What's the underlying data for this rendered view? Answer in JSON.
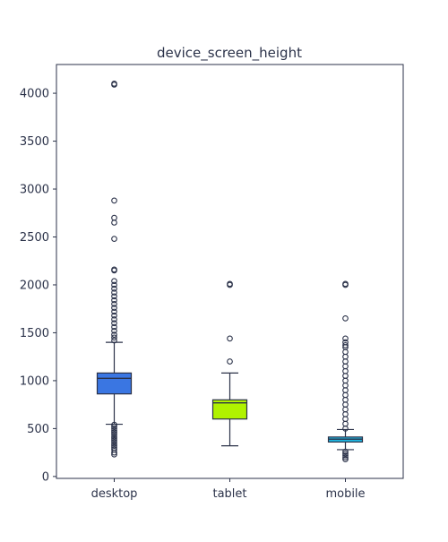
{
  "chart_data": {
    "type": "box",
    "title": "device_screen_height",
    "xlabel": "",
    "ylabel": "",
    "ylim": [
      -20,
      4300
    ],
    "yticks": [
      0,
      500,
      1000,
      1500,
      2000,
      2500,
      3000,
      3500,
      4000
    ],
    "grid": false,
    "categories": [
      "desktop",
      "tablet",
      "mobile"
    ],
    "boxes": [
      {
        "category": "desktop",
        "color": "#3a76e2",
        "whisker_low": 545,
        "q1": 862,
        "median": 1024,
        "q3": 1080,
        "whisker_high": 1400,
        "outliers": [
          230,
          250,
          280,
          300,
          320,
          340,
          360,
          380,
          400,
          420,
          440,
          460,
          480,
          500,
          520,
          540,
          1420,
          1450,
          1480,
          1520,
          1560,
          1600,
          1640,
          1680,
          1720,
          1760,
          1800,
          1840,
          1880,
          1920,
          1960,
          2000,
          2040,
          2150,
          2160,
          2480,
          2650,
          2700,
          2880,
          4090,
          4100
        ]
      },
      {
        "category": "tablet",
        "color": "#b0f200",
        "whisker_low": 320,
        "q1": 600,
        "median": 768,
        "q3": 800,
        "whisker_high": 1080,
        "outliers": [
          1200,
          1440,
          2000,
          2010
        ]
      },
      {
        "category": "mobile",
        "color": "#1fb6e0",
        "whisker_low": 280,
        "q1": 360,
        "median": 390,
        "q3": 412,
        "whisker_high": 490,
        "outliers": [
          180,
          200,
          220,
          240,
          260,
          500,
          550,
          600,
          650,
          700,
          750,
          800,
          850,
          900,
          950,
          1000,
          1050,
          1100,
          1150,
          1200,
          1250,
          1300,
          1350,
          1370,
          1400,
          1440,
          1650,
          2000,
          2010
        ]
      }
    ]
  }
}
